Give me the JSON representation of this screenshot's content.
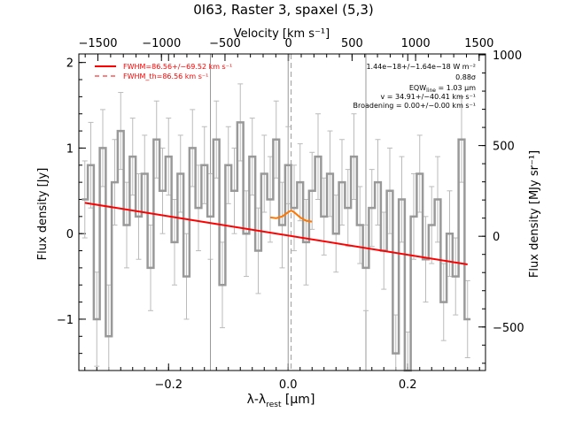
{
  "chart_data": {
    "type": "line",
    "title": "0I63, Raster 3, spaxel (5,3)",
    "xlabel_main": "λ-λ",
    "xlabel_sub": "rest",
    "xlabel_unit": " [μm]",
    "ylabel": "Flux density [Jy]",
    "x2label": "Velocity [km s⁻¹]",
    "y2label": "Flux density [MJy sr⁻¹]",
    "xlim": [
      -0.35,
      0.33
    ],
    "ylim": [
      -1.6,
      2.1
    ],
    "x2lim": [
      -1650,
      1550
    ],
    "y2lim": [
      -740,
      1005
    ],
    "x_ticks": [
      -0.2,
      0.0,
      0.2
    ],
    "x_tick_labels": [
      "−0.2",
      "0.0",
      "0.2"
    ],
    "y_ticks": [
      -1,
      0,
      1,
      2
    ],
    "y_tick_labels": [
      "−1",
      "0",
      "1",
      "2"
    ],
    "x2_ticks": [
      -1500,
      -1000,
      -500,
      0,
      500,
      1000,
      1500
    ],
    "x2_tick_labels": [
      "−1500",
      "−1000",
      "−500",
      "0",
      "500",
      "1000",
      "1500"
    ],
    "y2_ticks": [
      -500,
      0,
      500,
      1000
    ],
    "y2_tick_labels": [
      "−500",
      "0",
      "500",
      "1000"
    ],
    "vlines_solid": [
      -0.13,
      0.0,
      0.13
    ],
    "vline_dashed": 0.005,
    "legend": [
      {
        "label": "FWHM=86.56+/−69.52 km s⁻¹",
        "style": "solid",
        "color": "#ff0000"
      },
      {
        "label": "FWHM_th=86.56 km s⁻¹",
        "style": "dashed",
        "color": "#ff0000"
      }
    ],
    "annotations": [
      "1.44e−18+/−1.64e−18 W m⁻²",
      "0.88σ",
      "EQW",
      "line",
      " = 1.03 μm",
      "v = 34.91+/−40.41 km s⁻¹",
      "Broadening = 0.00+/−0.00 km s⁻¹"
    ],
    "series": [
      {
        "color": "#999999",
        "x": [
          -0.34,
          -0.33,
          -0.32,
          -0.31,
          -0.3,
          -0.29,
          -0.28,
          -0.27,
          -0.26,
          -0.25,
          -0.24,
          -0.23,
          -0.22,
          -0.21,
          -0.2,
          -0.19,
          -0.18,
          -0.17,
          -0.16,
          -0.15,
          -0.14,
          -0.13,
          -0.12,
          -0.11,
          -0.1,
          -0.09,
          -0.08,
          -0.07,
          -0.06,
          -0.05,
          -0.04,
          -0.03,
          -0.02,
          -0.01,
          0.0,
          0.01,
          0.02,
          0.03,
          0.04,
          0.05,
          0.06,
          0.07,
          0.08,
          0.09,
          0.1,
          0.11,
          0.12,
          0.13,
          0.14,
          0.15,
          0.16,
          0.17,
          0.18,
          0.19,
          0.2,
          0.21,
          0.22,
          0.23,
          0.24,
          0.25,
          0.26,
          0.27,
          0.28,
          0.29,
          0.3
        ],
        "y": [
          0.4,
          0.8,
          -1.0,
          1.0,
          -1.2,
          0.6,
          1.2,
          0.1,
          0.9,
          0.2,
          0.7,
          -0.4,
          1.1,
          0.5,
          0.9,
          -0.1,
          0.7,
          -0.5,
          1.0,
          0.3,
          0.8,
          0.2,
          1.1,
          -0.6,
          0.8,
          0.5,
          1.3,
          0.0,
          0.9,
          -0.2,
          0.7,
          0.4,
          1.1,
          0.1,
          0.8,
          0.3,
          0.6,
          -0.1,
          0.5,
          0.9,
          0.2,
          0.7,
          0.0,
          0.6,
          0.3,
          0.9,
          0.1,
          -0.4,
          0.3,
          0.6,
          -0.2,
          0.5,
          -1.4,
          0.4,
          -1.6,
          0.2,
          0.7,
          -0.3,
          0.1,
          0.4,
          -0.8,
          0.0,
          -0.5,
          1.1,
          -1.0
        ],
        "err": [
          0.45,
          0.5,
          0.55,
          0.45,
          0.6,
          0.5,
          0.45,
          0.5,
          0.45,
          0.5,
          0.45,
          0.5,
          0.45,
          0.5,
          0.45,
          0.5,
          0.45,
          0.5,
          0.45,
          0.5,
          0.45,
          0.5,
          0.45,
          0.5,
          0.45,
          0.5,
          0.45,
          0.5,
          0.45,
          0.5,
          0.45,
          0.5,
          0.45,
          0.5,
          0.45,
          0.5,
          0.45,
          0.5,
          0.45,
          0.5,
          0.45,
          0.5,
          0.45,
          0.5,
          0.45,
          0.5,
          0.45,
          0.5,
          0.45,
          0.5,
          0.45,
          0.5,
          0.45,
          0.5,
          0.45,
          0.5,
          0.45,
          0.5,
          0.45,
          0.5,
          0.45,
          0.5,
          0.45,
          0.5,
          0.45
        ]
      },
      {
        "color": "#ff0000",
        "x": [
          -0.34,
          0.3
        ],
        "y": [
          0.36,
          -0.36
        ]
      },
      {
        "color": "#ff7700",
        "x": [
          -0.03,
          -0.02,
          -0.01,
          0.0,
          0.005,
          0.01,
          0.02,
          0.03,
          0.04
        ],
        "y": [
          0.19,
          0.18,
          0.2,
          0.25,
          0.27,
          0.25,
          0.19,
          0.15,
          0.14
        ]
      }
    ]
  }
}
